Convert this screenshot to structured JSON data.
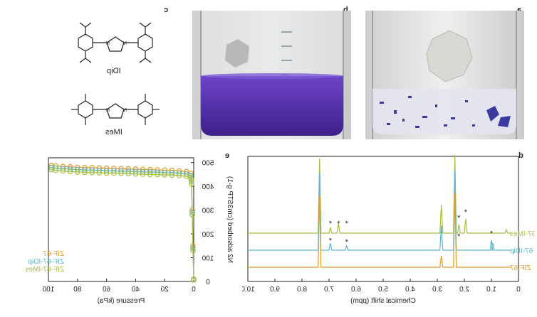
{
  "panels": {
    "a": "a",
    "b": "b",
    "c": "c",
    "d": "d",
    "e": "e"
  },
  "chem": {
    "idip": "IDip",
    "imes": "IMes",
    "n": "N"
  },
  "colors": {
    "zif67": "#E39B2A",
    "zif67_idip": "#5DB8C9",
    "zif67_imes": "#A6BF3A",
    "solution": "#5B2FB0"
  },
  "nmr": {
    "xlabel": "Chemical shift (ppm)",
    "ticks": [
      "10.0",
      "9.0",
      "8.0",
      "7.0",
      "6.0",
      "5.0",
      "4.0",
      "3.0",
      "2.0",
      "1.0",
      "0"
    ],
    "series": [
      "ZIF-67-IMes",
      "ZIF-67-IDip",
      "ZIF-67"
    ],
    "star": "*"
  },
  "iso": {
    "xlabel": "Pressure (kPa)",
    "ylabel": "N2 adsorbed (cm3STP g-1)",
    "xticks": [
      "0",
      "20",
      "40",
      "60",
      "80",
      "100"
    ],
    "yticks": [
      "0",
      "100",
      "200",
      "300",
      "400",
      "500"
    ],
    "legend": [
      "ZIF-67",
      "ZIF-67-IDip",
      "ZIF-67-IMes"
    ]
  },
  "chart_data": [
    {
      "type": "line",
      "title": "",
      "xlabel": "Chemical shift (ppm)",
      "ylabel": "",
      "xlim": [
        10.0,
        0
      ],
      "series": [
        {
          "name": "ZIF-67-IMes",
          "peaks_ppm": [
            7.35,
            6.95,
            6.65,
            2.85,
            2.35,
            2.2,
            1.95,
            0.45
          ]
        },
        {
          "name": "ZIF-67-IDip",
          "peaks_ppm": [
            7.35,
            6.95,
            6.35,
            2.85,
            2.35,
            1.0,
            0.95
          ]
        },
        {
          "name": "ZIF-67",
          "peaks_ppm": [
            7.35,
            2.85,
            2.35
          ]
        }
      ]
    },
    {
      "type": "scatter",
      "title": "",
      "xlabel": "Pressure (kPa)",
      "ylabel": "N2 adsorbed (cm3STP g-1)",
      "xlim": [
        0,
        100
      ],
      "ylim": [
        0,
        520
      ],
      "x": [
        0,
        0.5,
        1,
        1.5,
        2,
        5,
        10,
        15,
        20,
        25,
        30,
        35,
        40,
        45,
        50,
        55,
        60,
        65,
        70,
        75,
        80,
        85,
        90,
        95,
        98
      ],
      "series": [
        {
          "name": "ZIF-67",
          "values": [
            10,
            150,
            300,
            430,
            455,
            462,
            465,
            467,
            468,
            469,
            470,
            471,
            472,
            473,
            474,
            475,
            476,
            477,
            478,
            479,
            480,
            482,
            484,
            486,
            488
          ]
        },
        {
          "name": "ZIF-67-IDip",
          "values": [
            8,
            140,
            290,
            420,
            445,
            452,
            455,
            457,
            458,
            459,
            460,
            461,
            462,
            463,
            464,
            465,
            466,
            467,
            468,
            469,
            470,
            472,
            474,
            477,
            480
          ]
        },
        {
          "name": "ZIF-67-IMes",
          "values": [
            6,
            130,
            280,
            410,
            435,
            442,
            445,
            447,
            448,
            449,
            450,
            451,
            452,
            453,
            454,
            455,
            456,
            457,
            458,
            459,
            460,
            462,
            464,
            467,
            470
          ]
        }
      ]
    }
  ]
}
